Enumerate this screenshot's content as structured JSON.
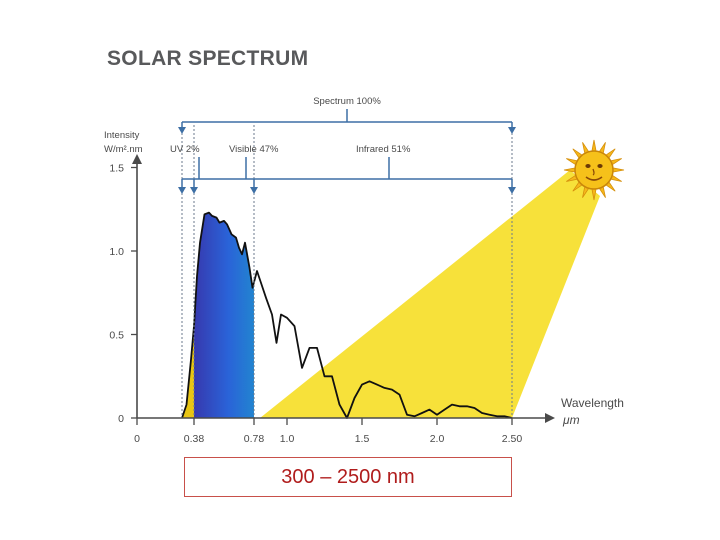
{
  "title": "SOLAR SPECTRUM",
  "caption": "300 – 2500 nm",
  "colors": {
    "sunbeam": "#f7e13a",
    "sun": "#f6c11a",
    "axis": "#4a4a4a",
    "bracket": "#3d6fa5",
    "caption": "#b01c1c"
  },
  "icons": {
    "sun": "sun-icon"
  },
  "chart_data": {
    "type": "area",
    "title": "SOLAR SPECTRUM",
    "ylabel_line1": "Intensity",
    "ylabel_line2": "W/m².nm",
    "xlabel_line1": "Wavelength",
    "xlabel_line2": "μm",
    "xlim": [
      0,
      2.6
    ],
    "ylim": [
      0,
      1.5
    ],
    "x_ticks": [
      {
        "value": 0,
        "label": "0"
      },
      {
        "value": 0.38,
        "label": "0.38"
      },
      {
        "value": 0.78,
        "label": "0.78"
      },
      {
        "value": 1.0,
        "label": "1.0"
      },
      {
        "value": 1.5,
        "label": "1.5"
      },
      {
        "value": 2.0,
        "label": "2.0"
      },
      {
        "value": 2.5,
        "label": "2.50"
      }
    ],
    "y_ticks": [
      {
        "value": 0,
        "label": "0"
      },
      {
        "value": 0.5,
        "label": "0.5"
      },
      {
        "value": 1.0,
        "label": "1.0"
      },
      {
        "value": 1.5,
        "label": "1.5"
      }
    ],
    "bands": [
      {
        "label": "Spectrum 100%",
        "x": [
          0.3,
          2.5
        ]
      },
      {
        "label": "UV 2%",
        "x": [
          0.3,
          0.38
        ]
      },
      {
        "label": "Visible 47%",
        "x": [
          0.38,
          0.78
        ]
      },
      {
        "label": "Infrared 51%",
        "x": [
          0.78,
          2.5
        ]
      }
    ],
    "series": [
      {
        "values": [
          [
            0.3,
            0.0
          ],
          [
            0.33,
            0.08
          ],
          [
            0.36,
            0.35
          ],
          [
            0.38,
            0.55
          ],
          [
            0.4,
            0.85
          ],
          [
            0.42,
            1.05
          ],
          [
            0.45,
            1.22
          ],
          [
            0.48,
            1.23
          ],
          [
            0.5,
            1.21
          ],
          [
            0.53,
            1.2
          ],
          [
            0.55,
            1.17
          ],
          [
            0.58,
            1.18
          ],
          [
            0.6,
            1.16
          ],
          [
            0.63,
            1.1
          ],
          [
            0.66,
            1.08
          ],
          [
            0.68,
            1.02
          ],
          [
            0.7,
            0.98
          ],
          [
            0.72,
            1.05
          ],
          [
            0.75,
            0.9
          ],
          [
            0.77,
            0.78
          ],
          [
            0.8,
            0.88
          ],
          [
            0.83,
            0.8
          ],
          [
            0.86,
            0.72
          ],
          [
            0.9,
            0.62
          ],
          [
            0.93,
            0.45
          ],
          [
            0.96,
            0.62
          ],
          [
            1.0,
            0.6
          ],
          [
            1.05,
            0.55
          ],
          [
            1.1,
            0.3
          ],
          [
            1.15,
            0.42
          ],
          [
            1.2,
            0.42
          ],
          [
            1.25,
            0.25
          ],
          [
            1.3,
            0.25
          ],
          [
            1.35,
            0.08
          ],
          [
            1.4,
            0.0
          ],
          [
            1.45,
            0.12
          ],
          [
            1.5,
            0.2
          ],
          [
            1.55,
            0.22
          ],
          [
            1.6,
            0.2
          ],
          [
            1.65,
            0.18
          ],
          [
            1.7,
            0.17
          ],
          [
            1.75,
            0.14
          ],
          [
            1.8,
            0.02
          ],
          [
            1.85,
            0.01
          ],
          [
            1.9,
            0.03
          ],
          [
            1.95,
            0.05
          ],
          [
            2.0,
            0.02
          ],
          [
            2.05,
            0.05
          ],
          [
            2.1,
            0.08
          ],
          [
            2.15,
            0.07
          ],
          [
            2.2,
            0.07
          ],
          [
            2.25,
            0.06
          ],
          [
            2.3,
            0.03
          ],
          [
            2.35,
            0.02
          ],
          [
            2.4,
            0.01
          ],
          [
            2.45,
            0.01
          ],
          [
            2.5,
            0.0
          ]
        ]
      }
    ],
    "grid": false,
    "legend": "none"
  }
}
